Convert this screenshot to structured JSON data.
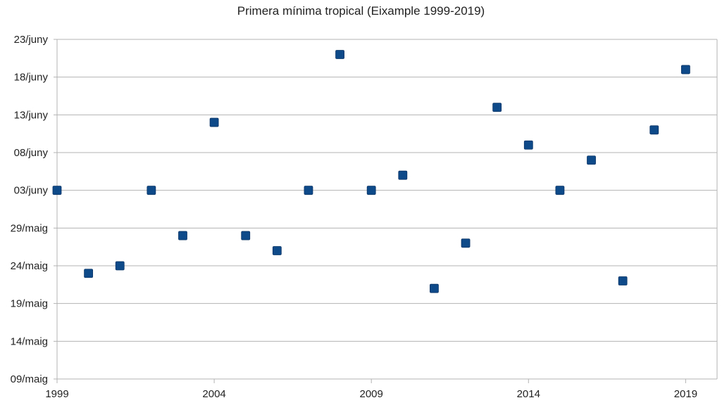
{
  "chart_data": {
    "type": "scatter",
    "title": "Primera mínima tropical (Eixample 1999-2019)",
    "xlabel": "",
    "ylabel": "",
    "xlim": [
      1999,
      2020
    ],
    "ylim": [
      "09/maig",
      "23/juny"
    ],
    "x_ticks": [
      "1999",
      "2004",
      "2009",
      "2014",
      "2019"
    ],
    "y_ticks": [
      "09/maig",
      "14/maig",
      "19/maig",
      "24/maig",
      "29/maig",
      "03/juny",
      "08/juny",
      "13/juny",
      "18/juny",
      "23/juny"
    ],
    "grid": "horizontal",
    "legend": "none",
    "marker": "square",
    "series": [
      {
        "color": "#0e4a8a",
        "points": [
          {
            "x": 1999,
            "y": "03/juny"
          },
          {
            "x": 2000,
            "y": "23/maig"
          },
          {
            "x": 2001,
            "y": "24/maig"
          },
          {
            "x": 2002,
            "y": "03/juny"
          },
          {
            "x": 2003,
            "y": "28/maig"
          },
          {
            "x": 2004,
            "y": "12/juny"
          },
          {
            "x": 2005,
            "y": "28/maig"
          },
          {
            "x": 2006,
            "y": "26/maig"
          },
          {
            "x": 2007,
            "y": "03/juny"
          },
          {
            "x": 2008,
            "y": "21/juny"
          },
          {
            "x": 2009,
            "y": "03/juny"
          },
          {
            "x": 2010,
            "y": "05/juny"
          },
          {
            "x": 2011,
            "y": "21/maig"
          },
          {
            "x": 2012,
            "y": "27/maig"
          },
          {
            "x": 2013,
            "y": "14/juny"
          },
          {
            "x": 2014,
            "y": "09/juny"
          },
          {
            "x": 2015,
            "y": "03/juny"
          },
          {
            "x": 2016,
            "y": "07/juny"
          },
          {
            "x": 2017,
            "y": "22/maig"
          },
          {
            "x": 2018,
            "y": "11/juny"
          },
          {
            "x": 2019,
            "y": "19/juny"
          }
        ]
      }
    ]
  }
}
